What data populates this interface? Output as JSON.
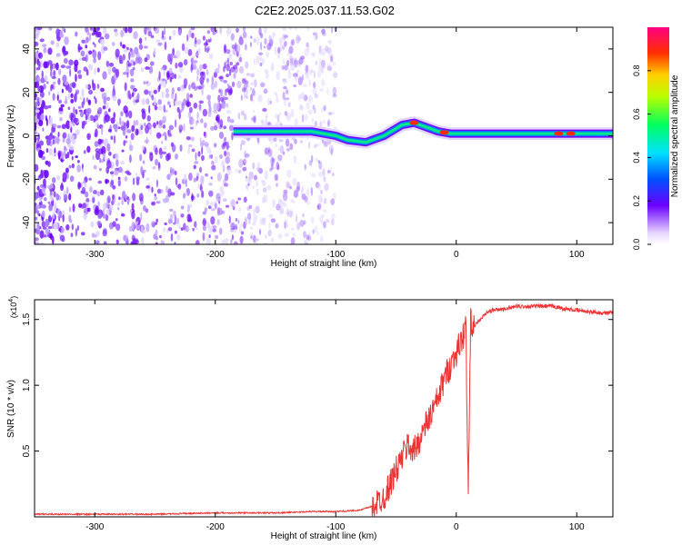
{
  "title": "C2E2.2025.037.11.53.G02",
  "chart_data": [
    {
      "type": "heatmap",
      "xlabel": "Height of straight line (km)",
      "ylabel": "Frequency (Hz)",
      "xlim": [
        -350,
        130
      ],
      "ylim": [
        -50,
        50
      ],
      "x_ticks": [
        -300,
        -200,
        -100,
        0,
        100
      ],
      "y_ticks": [
        -40,
        -20,
        0,
        20,
        40
      ],
      "colorbar": {
        "label": "Normalized spectral amplitude",
        "range": [
          0,
          1
        ],
        "ticks": [
          0.0,
          0.2,
          0.4,
          0.6,
          0.8
        ]
      },
      "signal_track": [
        {
          "x": -185,
          "y": 2
        },
        {
          "x": -150,
          "y": 2
        },
        {
          "x": -120,
          "y": 2
        },
        {
          "x": -100,
          "y": 0
        },
        {
          "x": -90,
          "y": -2
        },
        {
          "x": -75,
          "y": -3
        },
        {
          "x": -60,
          "y": 0
        },
        {
          "x": -45,
          "y": 5
        },
        {
          "x": -35,
          "y": 6
        },
        {
          "x": -25,
          "y": 4
        },
        {
          "x": -15,
          "y": 2
        },
        {
          "x": -5,
          "y": 1
        },
        {
          "x": 10,
          "y": 1
        },
        {
          "x": 50,
          "y": 1
        },
        {
          "x": 90,
          "y": 1
        },
        {
          "x": 130,
          "y": 1
        }
      ]
    },
    {
      "type": "line",
      "xlabel": "Height of straight line (km)",
      "ylabel": "SNR (10 * v/v)",
      "y_multiplier": "(x10",
      "y_multiplier_exp": "4",
      "y_multiplier_close": ")",
      "xlim": [
        -350,
        130
      ],
      "ylim": [
        0,
        1.65
      ],
      "x_ticks": [
        -300,
        -200,
        -100,
        0,
        100
      ],
      "y_ticks": [
        0.5,
        1.0,
        1.5
      ],
      "y_tick_labels": [
        "0.5",
        "1.0",
        "1.5"
      ],
      "line_color": "#ee3333",
      "series": [
        {
          "x": [
            -350,
            -300,
            -250,
            -200,
            -150,
            -120,
            -100,
            -80,
            -70,
            -60,
            -55,
            -50,
            -45,
            -40,
            -35,
            -30,
            -25,
            -20,
            -15,
            -10,
            -5,
            0,
            5,
            8,
            10,
            12,
            15,
            20,
            25,
            30,
            40,
            50,
            60,
            70,
            80,
            90,
            100,
            110,
            120,
            130
          ],
          "values": [
            0.02,
            0.02,
            0.02,
            0.03,
            0.03,
            0.04,
            0.04,
            0.05,
            0.08,
            0.15,
            0.25,
            0.35,
            0.45,
            0.55,
            0.5,
            0.6,
            0.7,
            0.8,
            0.9,
            1.05,
            1.15,
            1.25,
            1.35,
            1.45,
            0.15,
            1.5,
            1.45,
            1.5,
            1.55,
            1.57,
            1.58,
            1.6,
            1.6,
            1.6,
            1.6,
            1.58,
            1.57,
            1.56,
            1.55,
            1.55
          ]
        }
      ]
    }
  ]
}
